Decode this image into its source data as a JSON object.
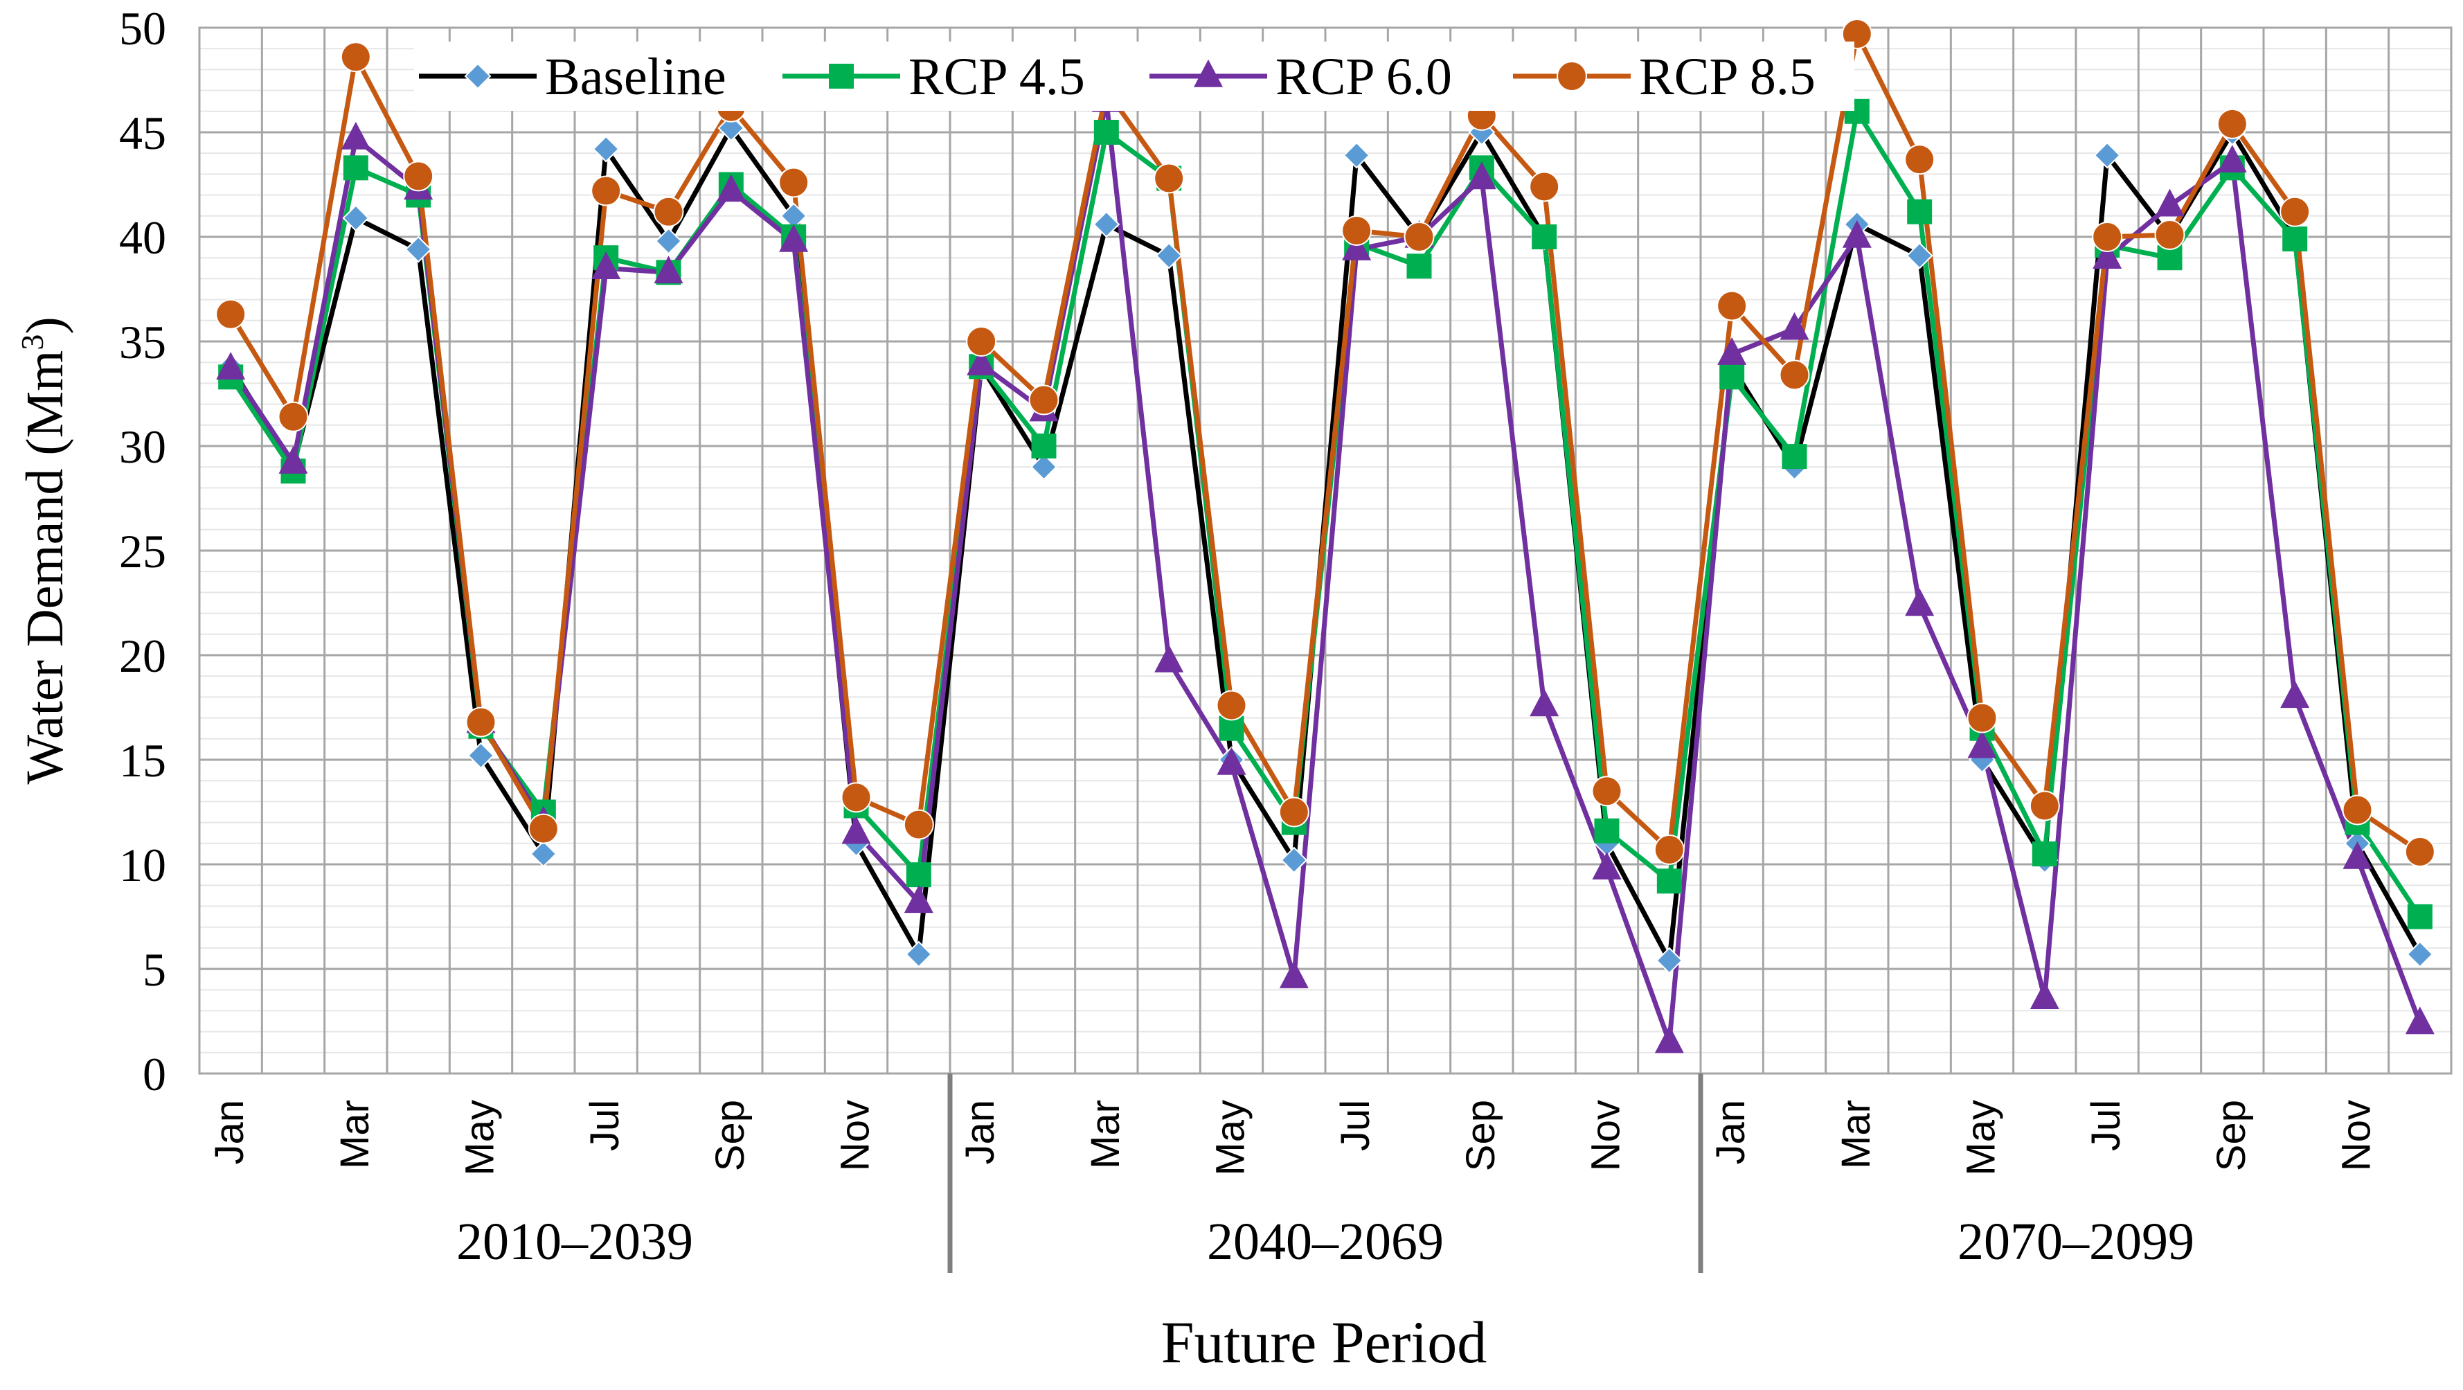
{
  "chart_data": {
    "type": "line",
    "ylabel": "Water Demand (Mm",
    "ylabel_sup": "3",
    "ylabel_close": ")",
    "xlabel": "Future Period",
    "ylim": [
      0,
      50
    ],
    "yticks": [
      0,
      5,
      10,
      15,
      20,
      25,
      30,
      35,
      40,
      45,
      50
    ],
    "grid": true,
    "legend": "top-center",
    "periods": [
      "2010–2039",
      "2040–2069",
      "2070–2099"
    ],
    "month_labels": [
      "Jan",
      "",
      "Mar",
      "",
      "May",
      "",
      "Jul",
      "",
      "Sep",
      "",
      "Nov",
      ""
    ],
    "series": [
      {
        "name": "Baseline",
        "color": "#000000",
        "marker": "diamond",
        "marker_color": "#5B9BD5",
        "values": [
          33.8,
          29.0,
          40.9,
          39.4,
          15.2,
          10.5,
          44.2,
          39.8,
          45.2,
          41.0,
          11.0,
          5.7,
          33.8,
          29.0,
          40.6,
          39.1,
          15.0,
          10.2,
          43.9,
          40.0,
          45.0,
          40.0,
          11.0,
          5.4,
          33.8,
          29.0,
          40.6,
          39.1,
          15.0,
          10.2,
          43.9,
          40.0,
          45.0,
          40.0,
          11.0,
          5.7
        ]
      },
      {
        "name": "RCP 4.5",
        "color": "#00B050",
        "marker": "square",
        "marker_color": "#00B050",
        "values": [
          33.3,
          28.8,
          43.3,
          42.0,
          16.6,
          12.5,
          39.0,
          38.3,
          42.5,
          40.0,
          12.8,
          9.5,
          33.8,
          30.0,
          45.0,
          42.8,
          16.5,
          12.0,
          39.7,
          38.6,
          43.3,
          40.0,
          11.6,
          9.2,
          33.3,
          29.5,
          46.0,
          41.2,
          16.5,
          10.5,
          39.6,
          39.0,
          43.3,
          39.9,
          12.0,
          7.5
        ]
      },
      {
        "name": "RCP 6.0",
        "color": "#7030A0",
        "marker": "triangle",
        "marker_color": "#7030A0",
        "values": [
          33.7,
          29.2,
          44.7,
          42.3,
          16.8,
          12.0,
          38.5,
          38.3,
          42.2,
          39.8,
          11.5,
          8.2,
          33.9,
          31.7,
          46.5,
          19.7,
          14.8,
          4.6,
          39.4,
          40.0,
          42.8,
          17.6,
          9.8,
          1.5,
          34.4,
          35.6,
          40.0,
          22.4,
          15.6,
          3.6,
          39.0,
          41.5,
          43.6,
          18.0,
          10.3,
          2.4
        ]
      },
      {
        "name": "RCP 8.5",
        "color": "#C65911",
        "marker": "circle",
        "marker_color": "#C65911",
        "values": [
          36.3,
          31.4,
          48.6,
          42.9,
          16.8,
          11.7,
          42.2,
          41.2,
          46.2,
          42.6,
          13.2,
          11.9,
          35.0,
          32.2,
          47.0,
          42.8,
          17.6,
          12.5,
          40.3,
          40.0,
          45.8,
          42.4,
          13.5,
          10.7,
          36.7,
          33.4,
          49.7,
          43.7,
          17.0,
          12.8,
          40.0,
          40.1,
          45.4,
          41.2,
          12.6,
          10.6
        ]
      }
    ]
  }
}
